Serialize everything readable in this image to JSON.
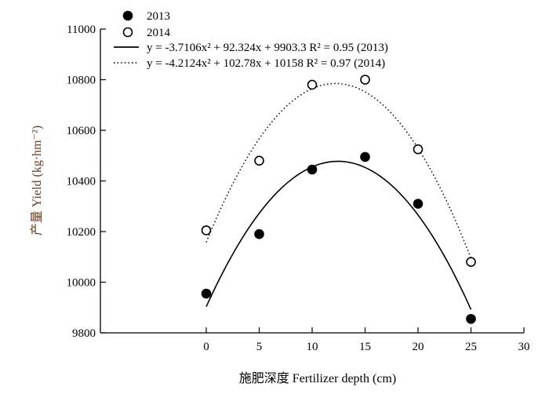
{
  "chart_data": {
    "type": "scatter",
    "xlabel": "施肥深度 Fertilizer depth (cm)",
    "ylabel": "产量 Yield (kg·hm⁻²)",
    "xlim": [
      -10,
      30
    ],
    "ylim": [
      9800,
      11000
    ],
    "xticks": [
      0,
      5,
      10,
      15,
      20,
      25,
      30
    ],
    "yticks": [
      9800,
      10000,
      10200,
      10400,
      10600,
      10800,
      11000
    ],
    "legend_position": "top-left",
    "series": [
      {
        "name": "2013",
        "marker": "filled-circle",
        "x": [
          0,
          5,
          10,
          15,
          20,
          25
        ],
        "y": [
          9955,
          10190,
          10445,
          10495,
          10310,
          9855
        ],
        "fit": {
          "a": -3.7106,
          "b": 92.324,
          "c": 9903.3,
          "style": "solid",
          "equation": "y = -3.7106x² + 92.324x + 9903.3  R² = 0.95 (2013)"
        }
      },
      {
        "name": "2014",
        "marker": "open-circle",
        "x": [
          0,
          5,
          10,
          15,
          20,
          25
        ],
        "y": [
          10205,
          10480,
          10780,
          10800,
          10525,
          10080
        ],
        "fit": {
          "a": -4.2124,
          "b": 102.78,
          "c": 10158,
          "style": "dotted",
          "equation": "y = -4.2124x² + 102.78x + 10158  R² = 0.97 (2014)"
        }
      }
    ]
  }
}
